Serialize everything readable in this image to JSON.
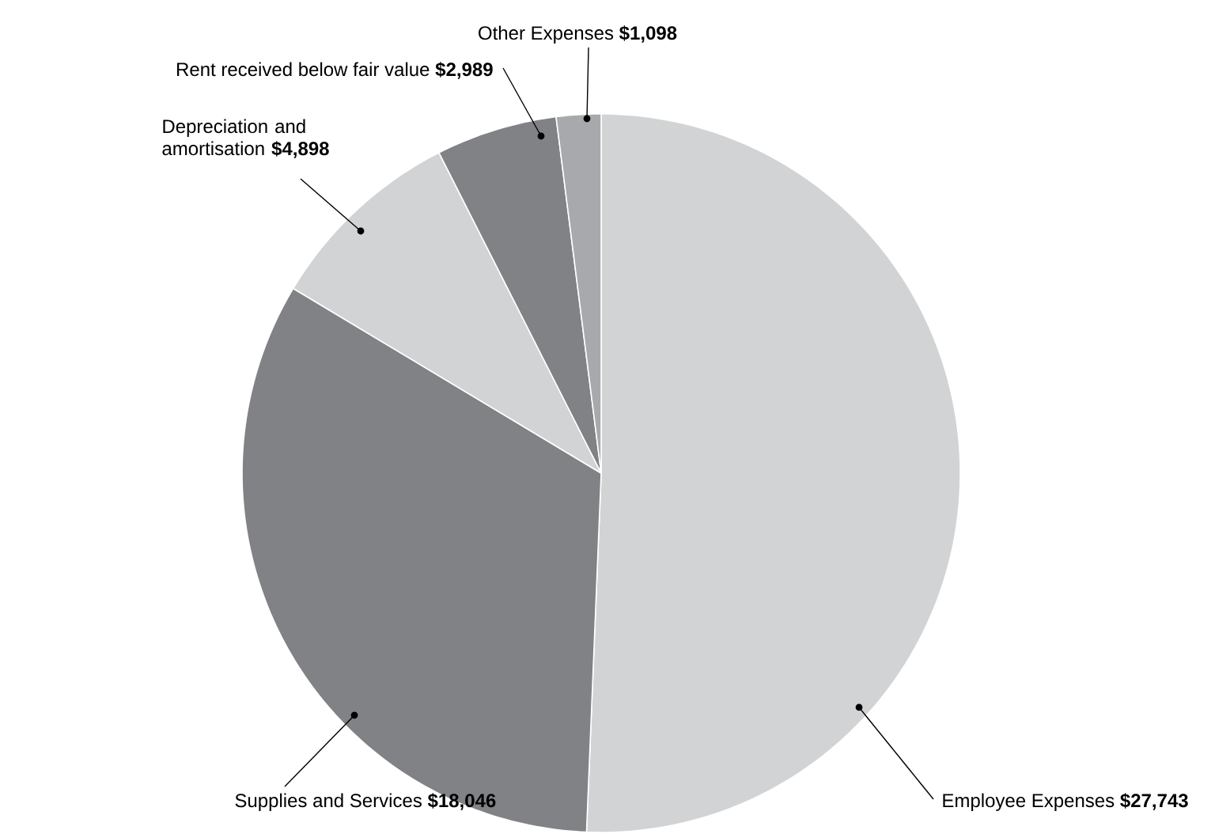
{
  "chart_data": {
    "type": "pie",
    "categories": [
      "Employee Expenses",
      "Supplies and Services",
      "Depreciation and amortisation",
      "Rent received below fair value",
      "Other Expenses"
    ],
    "values": [
      27743,
      18046,
      4898,
      2989,
      1098
    ],
    "value_labels": [
      "$27,743",
      "$18,046",
      "$4,898",
      "$2,989",
      "$1,098"
    ],
    "colors": [
      "#d1d3d4",
      "#808285",
      "#d1d3d4",
      "#808285",
      "#a7a9ac"
    ]
  }
}
